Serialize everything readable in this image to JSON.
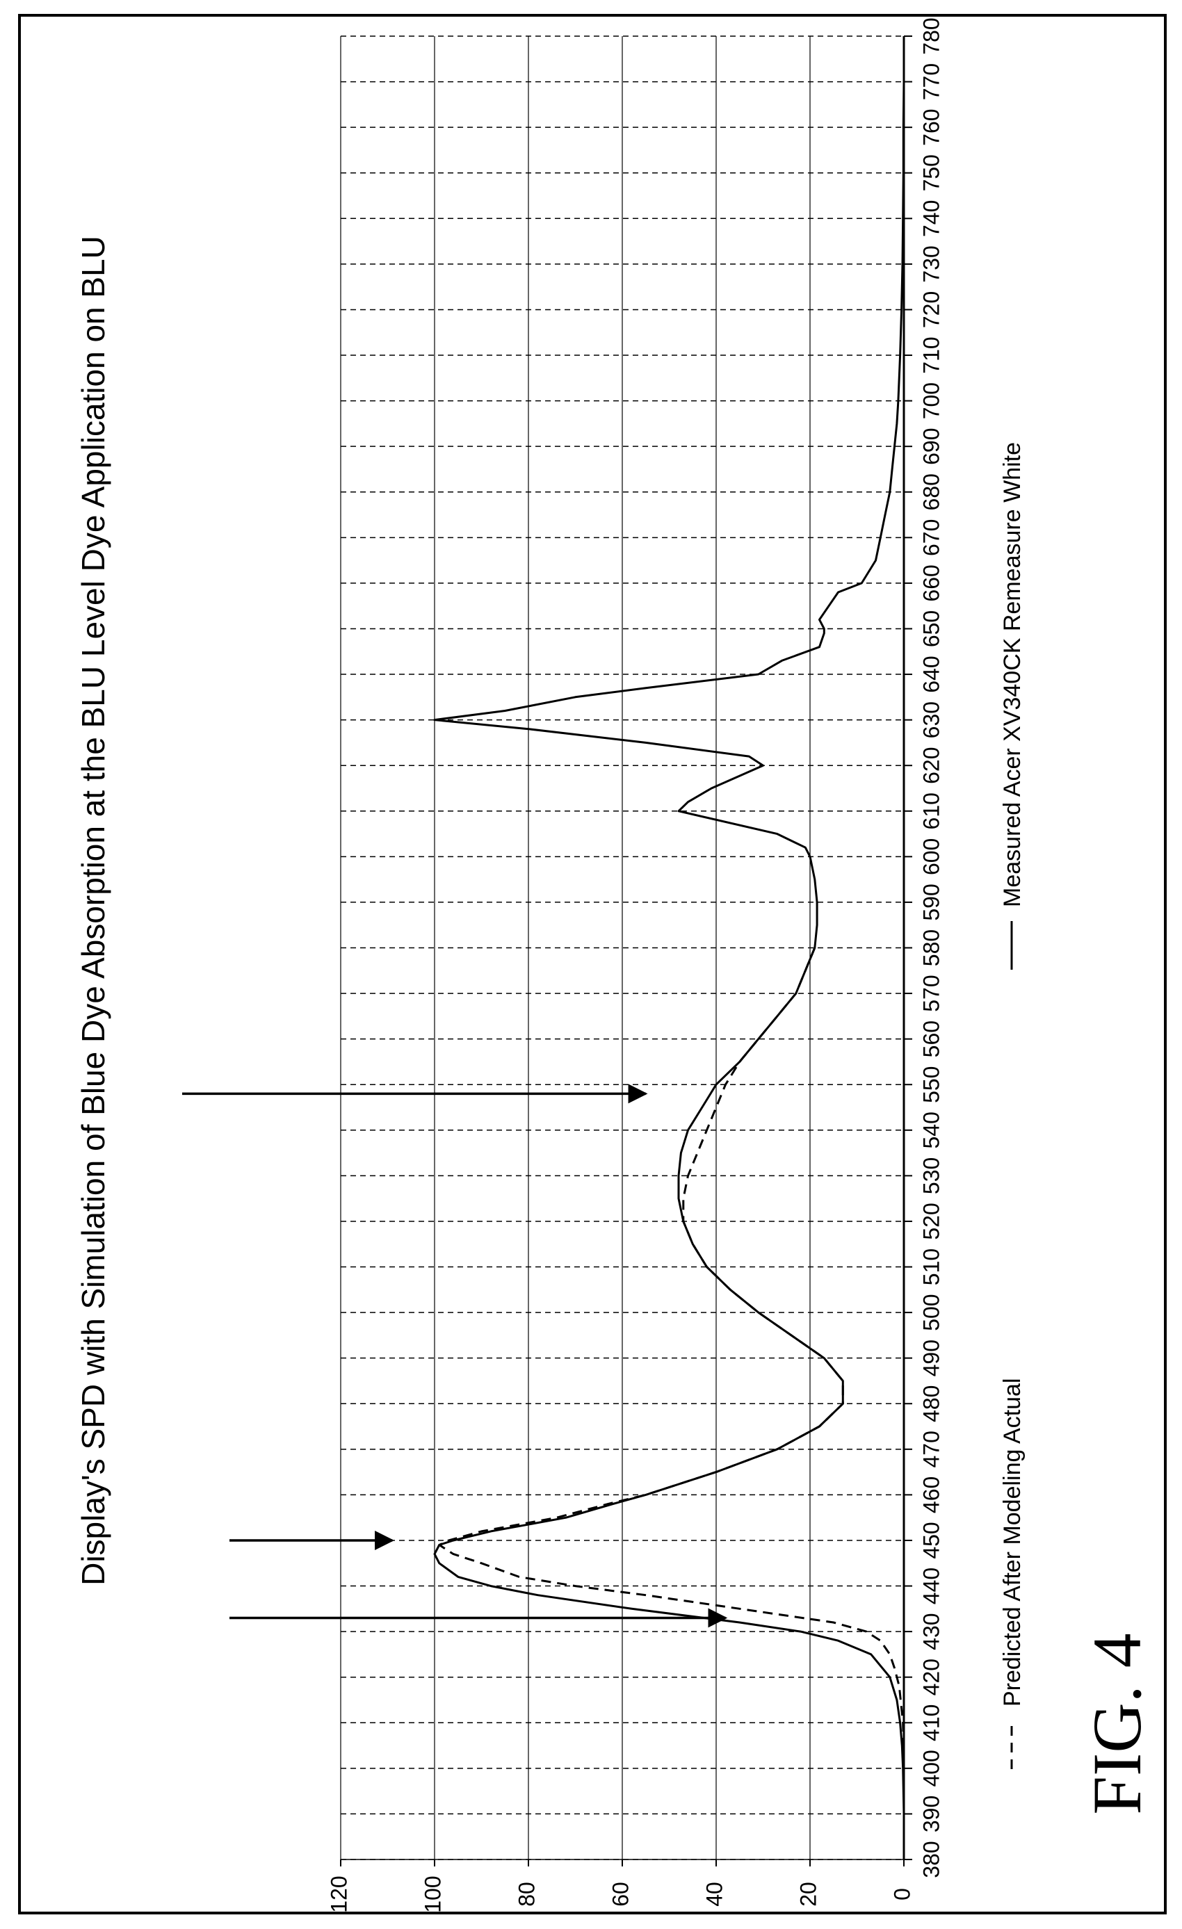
{
  "figure_label": "FIG. 4",
  "chart_data": {
    "type": "line",
    "title": "Display's SPD with Simulation of Blue Dye Absorption at the BLU Level Dye Application on BLU",
    "xlabel": "",
    "ylabel": "",
    "xlim": [
      380,
      780
    ],
    "ylim": [
      0,
      120
    ],
    "x_ticks": [
      380,
      390,
      400,
      410,
      420,
      430,
      440,
      450,
      460,
      470,
      480,
      490,
      500,
      510,
      520,
      530,
      540,
      550,
      560,
      570,
      580,
      590,
      600,
      610,
      620,
      630,
      640,
      650,
      660,
      670,
      680,
      690,
      700,
      710,
      720,
      730,
      740,
      750,
      760,
      770,
      780
    ],
    "y_ticks": [
      0,
      20,
      40,
      60,
      80,
      100,
      120
    ],
    "grid": true,
    "legend_position": "bottom",
    "orientation": "rotated 90 degrees clockwise",
    "series": [
      {
        "name": "Measured Acer XV340CK Remeasure White",
        "style": "solid",
        "color": "#000000",
        "x": [
          380,
          390,
          400,
          405,
          410,
          415,
          420,
          425,
          428,
          430,
          432,
          435,
          438,
          440,
          442,
          445,
          447,
          449,
          450,
          452,
          455,
          458,
          460,
          465,
          470,
          475,
          480,
          485,
          490,
          495,
          500,
          505,
          510,
          515,
          520,
          525,
          530,
          535,
          540,
          545,
          550,
          555,
          560,
          565,
          570,
          575,
          580,
          585,
          590,
          595,
          600,
          602,
          605,
          610,
          612,
          615,
          620,
          622,
          625,
          628,
          630,
          632,
          635,
          637,
          640,
          643,
          646,
          649,
          650,
          652,
          655,
          658,
          660,
          665,
          670,
          675,
          680,
          685,
          690,
          695,
          700,
          710,
          720,
          730,
          740,
          750,
          760,
          770,
          780
        ],
        "values": [
          0,
          0,
          0.2,
          0.4,
          0.8,
          1.5,
          3,
          7,
          14,
          22,
          35,
          58,
          78,
          88,
          95,
          99,
          100,
          99,
          96,
          88,
          72,
          62,
          55,
          40,
          27,
          18,
          13,
          13,
          17,
          24,
          31,
          37,
          42,
          45,
          47,
          48,
          48,
          47.5,
          46,
          43,
          40,
          35,
          31,
          27,
          23,
          21,
          19,
          18.5,
          18.5,
          19,
          20,
          21,
          27,
          48,
          46,
          41,
          30,
          33,
          55,
          80,
          100,
          85,
          70,
          55,
          31,
          26,
          18,
          17,
          17,
          18,
          16,
          14,
          9,
          6,
          5,
          4,
          3,
          2.5,
          2,
          1.5,
          1.2,
          0.8,
          0.5,
          0.3,
          0.2,
          0.1,
          0.1,
          0,
          0
        ]
      },
      {
        "name": "Predicted After Modeling Actual",
        "style": "dashed",
        "color": "#000000",
        "x": [
          380,
          400,
          410,
          418,
          422,
          425,
          428,
          430,
          432,
          435,
          438,
          440,
          442,
          445,
          447,
          449,
          450,
          452,
          455,
          458,
          460,
          465,
          470,
          475,
          480,
          485,
          490,
          495,
          500,
          505,
          510,
          515,
          520,
          525,
          530,
          535,
          540,
          545,
          550,
          555,
          560,
          565,
          570,
          575,
          580
        ],
        "values": [
          0,
          0,
          0.2,
          1,
          2,
          3,
          5,
          8,
          15,
          35,
          55,
          70,
          82,
          90,
          96,
          99,
          97,
          90,
          74,
          63,
          55,
          40,
          27,
          18,
          13,
          13,
          17,
          24,
          31,
          37,
          42,
          45,
          47,
          47,
          46,
          44,
          42,
          40,
          38,
          35,
          31,
          27,
          23,
          21,
          19
        ]
      }
    ],
    "annotations": [
      {
        "type": "arrow",
        "target_x": 433,
        "target_y": 38
      },
      {
        "type": "arrow",
        "target_x": 450,
        "target_y": 109
      },
      {
        "type": "arrow",
        "target_x": 548,
        "target_y": 55
      }
    ]
  }
}
